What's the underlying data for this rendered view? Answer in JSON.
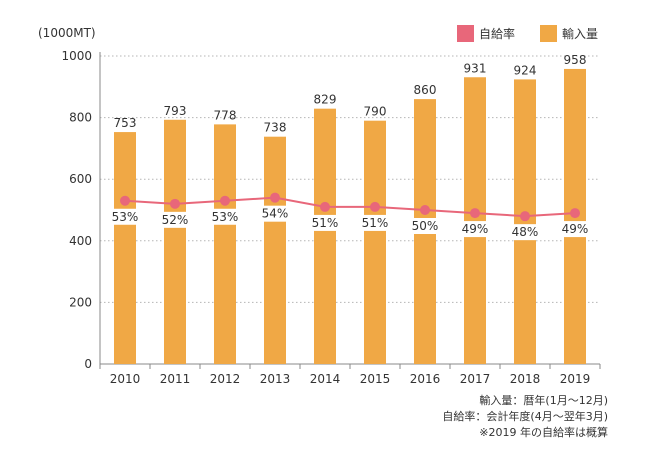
{
  "chart_data": {
    "type": "bar+line",
    "unit_label": "(1000MT)",
    "categories": [
      "2010",
      "2011",
      "2012",
      "2013",
      "2014",
      "2015",
      "2016",
      "2017",
      "2018",
      "2019"
    ],
    "series": [
      {
        "name": "輸入量",
        "type": "bar",
        "color": "#f0a845",
        "values": [
          753,
          793,
          778,
          738,
          829,
          790,
          860,
          931,
          924,
          958
        ],
        "labels": [
          "753",
          "793",
          "778",
          "738",
          "829",
          "790",
          "860",
          "931",
          "924",
          "958"
        ]
      },
      {
        "name": "自給率",
        "type": "line",
        "color": "#e8677a",
        "values": [
          53,
          52,
          53,
          54,
          51,
          51,
          50,
          49,
          48,
          49
        ],
        "labels": [
          "53%",
          "52%",
          "53%",
          "54%",
          "51%",
          "51%",
          "50%",
          "49%",
          "48%",
          "49%"
        ]
      }
    ],
    "ylim": [
      0,
      1000
    ],
    "yticks": [
      "0",
      "200",
      "400",
      "600",
      "800",
      "1000"
    ],
    "grid": true,
    "legend": "top-right"
  },
  "notes": [
    "輸入量：暦年(1月〜12月)",
    "自給率：会計年度(4月〜翌年3月)",
    "※2019 年の自給率は概算"
  ]
}
